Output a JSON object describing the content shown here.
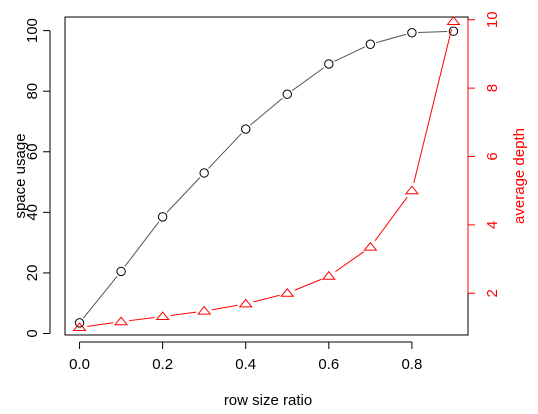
{
  "chart_data": {
    "type": "line",
    "title": "",
    "xlabel": "row size ratio",
    "ylabel_left": "space usage",
    "ylabel_right": "average depth",
    "x": [
      0.0,
      0.1,
      0.2,
      0.3,
      0.4,
      0.5,
      0.6,
      0.7,
      0.8,
      0.9
    ],
    "xlim": [
      -0.035,
      0.935
    ],
    "ylim_left": [
      -0.5,
      104.5
    ],
    "ylim_right": [
      0.78,
      10.08
    ],
    "x_ticks": [
      "0.0",
      "0.2",
      "0.4",
      "0.6",
      "0.8"
    ],
    "y_left_ticks": [
      "0",
      "20",
      "40",
      "60",
      "80",
      "100"
    ],
    "y_right_ticks": [
      "2",
      "4",
      "6",
      "8",
      "10"
    ],
    "grid": false,
    "series": [
      {
        "axis": "left",
        "marker": "circle",
        "color": "#000000",
        "line_color": "#555555",
        "values": [
          3.5,
          20.5,
          38.5,
          53,
          67.5,
          79,
          89,
          95.5,
          99.3,
          99.8
        ]
      },
      {
        "axis": "right",
        "marker": "triangle",
        "color": "#ff0000",
        "values": [
          1.0,
          1.17,
          1.32,
          1.48,
          1.69,
          2.0,
          2.5,
          3.35,
          5.0,
          9.95
        ]
      }
    ]
  }
}
